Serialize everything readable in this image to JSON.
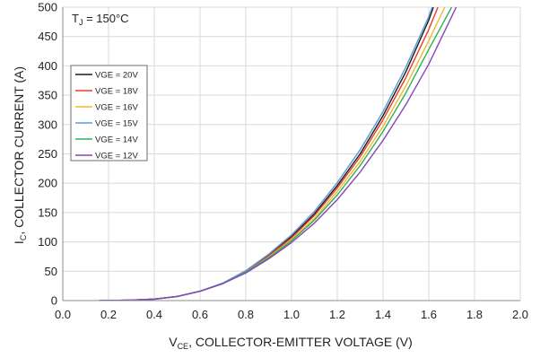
{
  "chart_data": {
    "type": "line",
    "annotation": {
      "main": "T",
      "sub": "J",
      "rest": " = 150°C"
    },
    "xlabel": {
      "main": "V",
      "sub": "CE",
      "rest": ", COLLECTOR-EMITTER VOLTAGE (V)"
    },
    "ylabel": {
      "main": "I",
      "sub": "C",
      "rest": ", COLLECTOR CURRENT (A)"
    },
    "xlim": [
      0,
      2
    ],
    "ylim": [
      0,
      500
    ],
    "x_ticks": [
      "0.0",
      "0.2",
      "0.4",
      "0.6",
      "0.8",
      "1.0",
      "1.2",
      "1.4",
      "1.6",
      "1.8",
      "2.0"
    ],
    "y_ticks": [
      "0",
      "50",
      "100",
      "150",
      "200",
      "250",
      "300",
      "350",
      "400",
      "450",
      "500"
    ],
    "grid": true,
    "legend_position": "left",
    "series": [
      {
        "name": "VGE = 20V",
        "color": "#1a1a1a",
        "points": [
          [
            0.16,
            0
          ],
          [
            0.3,
            0.8
          ],
          [
            0.4,
            2.5
          ],
          [
            0.5,
            7
          ],
          [
            0.6,
            16
          ],
          [
            0.7,
            29
          ],
          [
            0.8,
            50
          ],
          [
            0.9,
            77
          ],
          [
            1.0,
            109
          ],
          [
            1.1,
            148
          ],
          [
            1.2,
            196
          ],
          [
            1.3,
            250
          ],
          [
            1.4,
            315
          ],
          [
            1.5,
            390
          ],
          [
            1.6,
            478
          ],
          [
            1.62,
            500
          ]
        ]
      },
      {
        "name": "VGE = 18V",
        "color": "#e5402d",
        "points": [
          [
            0.16,
            0
          ],
          [
            0.3,
            0.8
          ],
          [
            0.4,
            2.5
          ],
          [
            0.5,
            7
          ],
          [
            0.6,
            16
          ],
          [
            0.7,
            29
          ],
          [
            0.8,
            49
          ],
          [
            0.9,
            76
          ],
          [
            1.0,
            107
          ],
          [
            1.1,
            145
          ],
          [
            1.2,
            192
          ],
          [
            1.3,
            245
          ],
          [
            1.4,
            308
          ],
          [
            1.5,
            380
          ],
          [
            1.6,
            462
          ],
          [
            1.64,
            500
          ]
        ]
      },
      {
        "name": "VGE = 16V",
        "color": "#f4b928",
        "points": [
          [
            0.16,
            0
          ],
          [
            0.3,
            0.8
          ],
          [
            0.4,
            2.5
          ],
          [
            0.5,
            7
          ],
          [
            0.6,
            16
          ],
          [
            0.7,
            29
          ],
          [
            0.8,
            48
          ],
          [
            0.9,
            74
          ],
          [
            1.0,
            104
          ],
          [
            1.1,
            140
          ],
          [
            1.2,
            186
          ],
          [
            1.3,
            237
          ],
          [
            1.4,
            297
          ],
          [
            1.5,
            366
          ],
          [
            1.6,
            443
          ],
          [
            1.67,
            500
          ]
        ]
      },
      {
        "name": "VGE = 15V",
        "color": "#5b9bd5",
        "points": [
          [
            0.16,
            0
          ],
          [
            0.3,
            0.8
          ],
          [
            0.4,
            2.5
          ],
          [
            0.5,
            7
          ],
          [
            0.6,
            16
          ],
          [
            0.7,
            30
          ],
          [
            0.8,
            51
          ],
          [
            0.9,
            79
          ],
          [
            1.0,
            112
          ],
          [
            1.1,
            152
          ],
          [
            1.2,
            201
          ],
          [
            1.3,
            257
          ],
          [
            1.4,
            322
          ],
          [
            1.5,
            398
          ],
          [
            1.6,
            484
          ],
          [
            1.615,
            500
          ]
        ]
      },
      {
        "name": "VGE = 14V",
        "color": "#2db15a",
        "points": [
          [
            0.16,
            0
          ],
          [
            0.3,
            0.8
          ],
          [
            0.4,
            2.5
          ],
          [
            0.5,
            7
          ],
          [
            0.6,
            16
          ],
          [
            0.7,
            29
          ],
          [
            0.8,
            48
          ],
          [
            0.9,
            73
          ],
          [
            1.0,
            102
          ],
          [
            1.1,
            137
          ],
          [
            1.2,
            180
          ],
          [
            1.3,
            230
          ],
          [
            1.4,
            288
          ],
          [
            1.5,
            354
          ],
          [
            1.6,
            428
          ],
          [
            1.7,
            500
          ]
        ]
      },
      {
        "name": "VGE = 12V",
        "color": "#8446b8",
        "points": [
          [
            0.16,
            0
          ],
          [
            0.3,
            0.8
          ],
          [
            0.4,
            2.5
          ],
          [
            0.5,
            7
          ],
          [
            0.6,
            16
          ],
          [
            0.7,
            29
          ],
          [
            0.8,
            47
          ],
          [
            0.9,
            71
          ],
          [
            1.0,
            99
          ],
          [
            1.1,
            132
          ],
          [
            1.2,
            172
          ],
          [
            1.3,
            219
          ],
          [
            1.4,
            273
          ],
          [
            1.5,
            334
          ],
          [
            1.6,
            403
          ],
          [
            1.72,
            500
          ]
        ]
      }
    ]
  }
}
